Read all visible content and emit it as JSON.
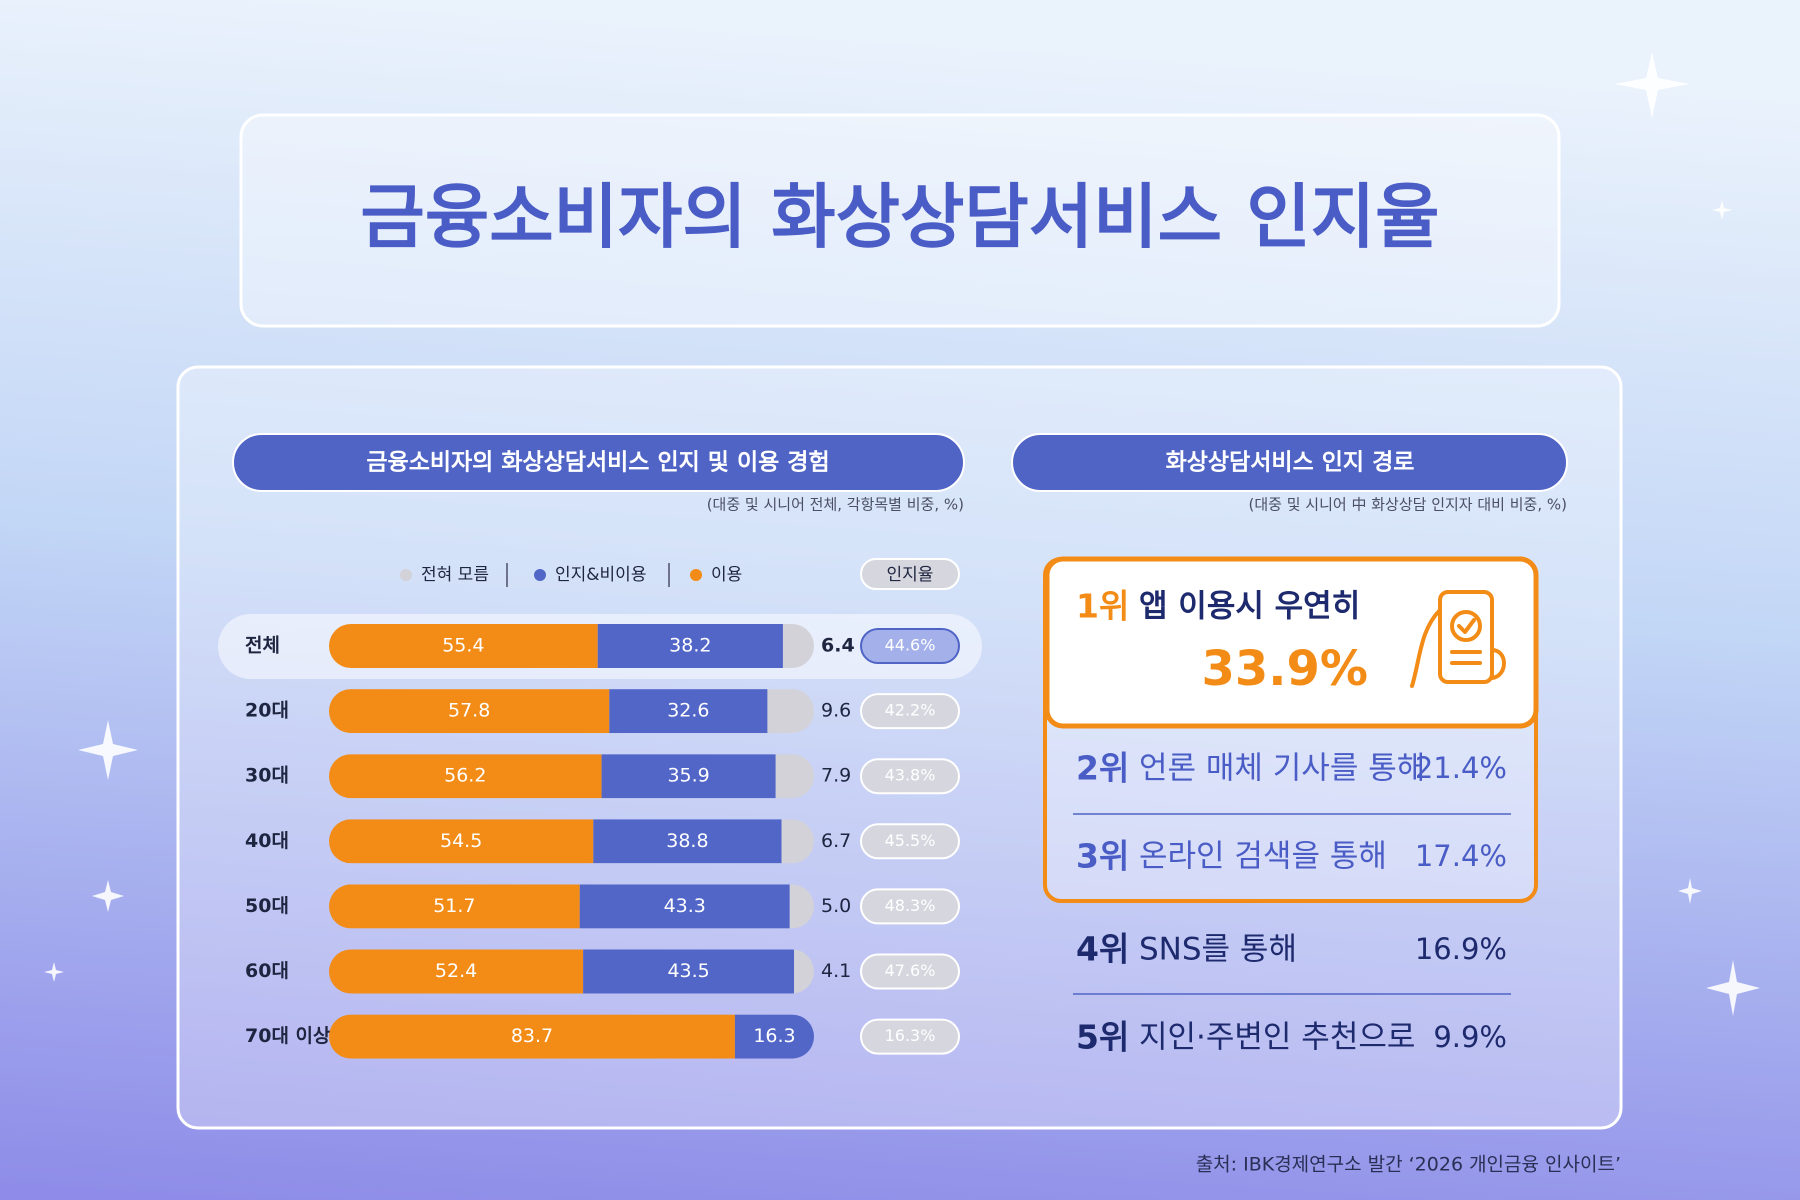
{
  "title": "금융소비자의 화상상담서비스 인지율",
  "chart_data": {
    "type": "stacked-bar",
    "title": "금융소비자의 화상상담서비스 인지 및 이용 경험",
    "subtitle": "(대중 및 시니어 전체, 각항목별 비중, %)",
    "categories": [
      "전체",
      "20대",
      "30대",
      "40대",
      "50대",
      "60대",
      "70대 이상"
    ],
    "series": [
      {
        "name": "이용",
        "color": "#f28c17",
        "values": [
          55.4,
          57.8,
          56.2,
          54.5,
          51.7,
          52.4,
          83.7
        ]
      },
      {
        "name": "인지&비이용",
        "color": "#5266c8",
        "values": [
          38.2,
          32.6,
          35.9,
          38.8,
          43.3,
          43.5,
          16.3
        ]
      },
      {
        "name": "전혀 모름",
        "color": "#d2d2d8",
        "values": [
          6.4,
          9.6,
          7.9,
          6.7,
          5.0,
          4.1,
          null
        ],
        "value_labels": [
          "6.4",
          "9.6",
          "7.9",
          "6.7",
          "5.0",
          "4.1",
          null
        ]
      }
    ],
    "recognition": {
      "name": "인지율",
      "values": [
        44.6,
        42.2,
        43.8,
        45.5,
        48.3,
        47.6,
        16.3
      ],
      "value_labels": [
        "44.6%",
        "42.2%",
        "43.8%",
        "45.5%",
        "48.3%",
        "47.6%",
        "16.3%"
      ]
    }
  },
  "ranking": {
    "title": "화상상담서비스 인지 경로",
    "subtitle": "(대중 및 시니어 中 화상상담 인지자 대비 비중, %)",
    "items": [
      {
        "rank": "1위",
        "label": "앱 이용시 우연히",
        "value": "33.9%"
      },
      {
        "rank": "2위",
        "label": "언론 매체 기사를 통해",
        "value": "21.4%"
      },
      {
        "rank": "3위",
        "label": "온라인 검색을 통해",
        "value": "17.4%"
      },
      {
        "rank": "4위",
        "label": "SNS를 통해",
        "value": "16.9%"
      },
      {
        "rank": "5위",
        "label": "지인·주변인 추천으로",
        "value": "9.9%"
      }
    ]
  },
  "source": "출처: IBK경제연구소 발간 ‘2026 개인금융 인사이트’"
}
